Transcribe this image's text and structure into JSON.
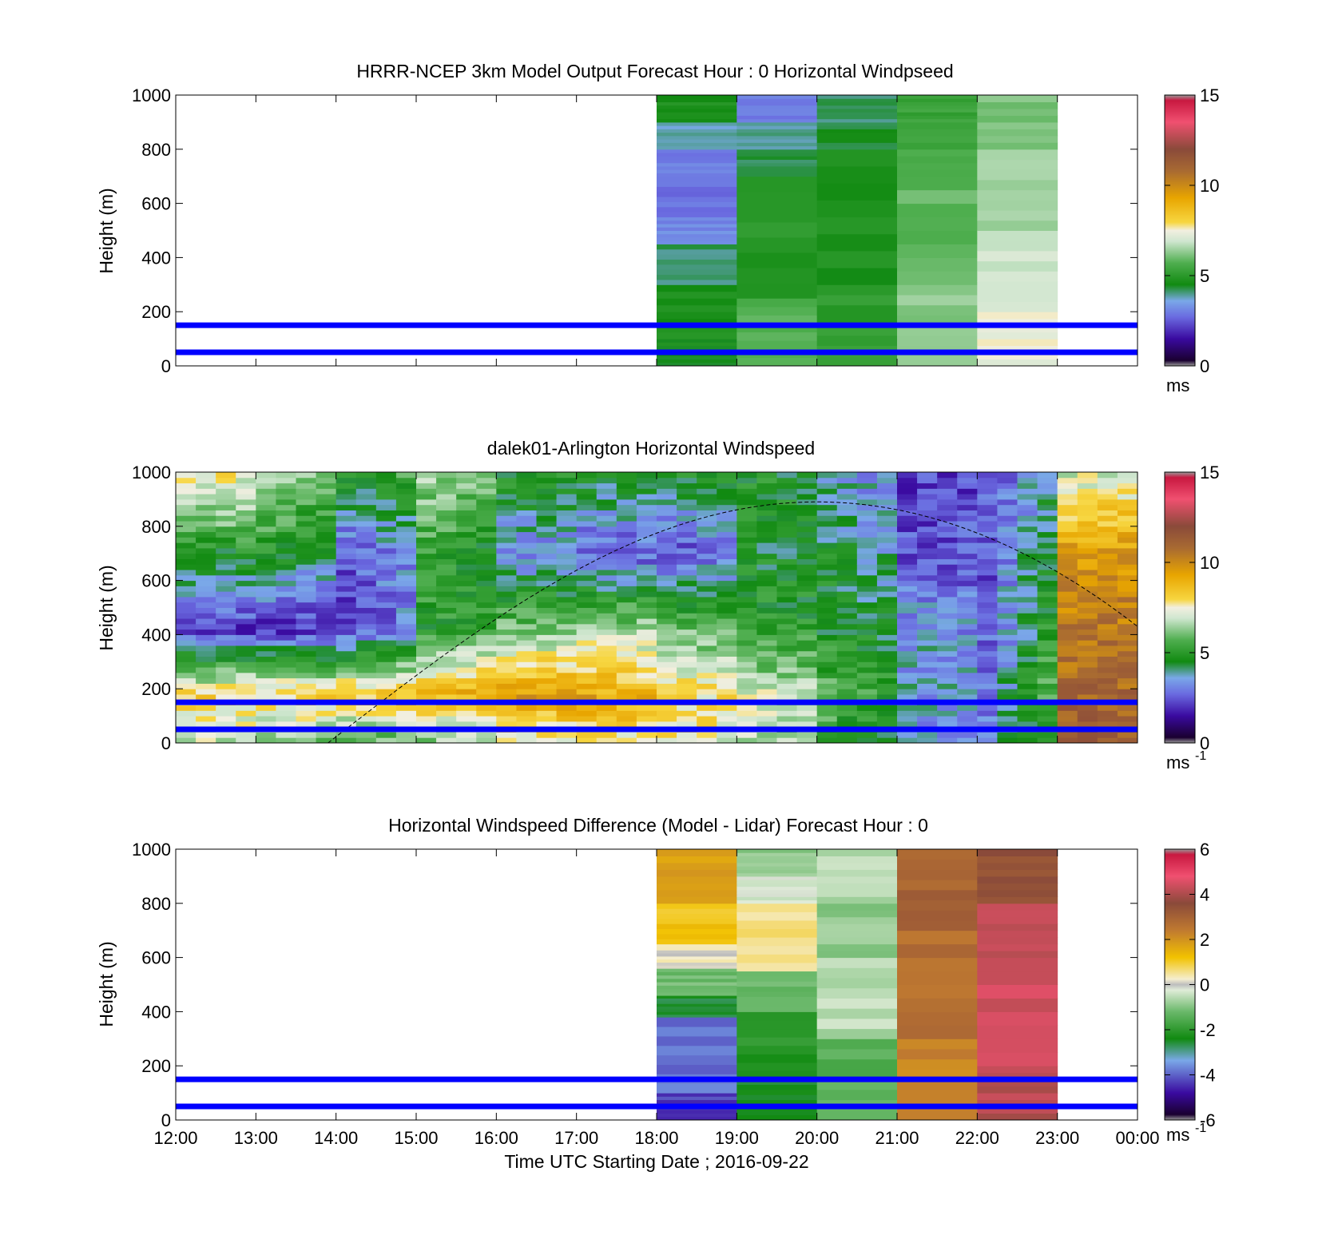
{
  "figure": {
    "xlabel": "Time UTC  Starting Date ; 2016-09-22",
    "x_tick_labels": [
      "12:00",
      "13:00",
      "14:00",
      "15:00",
      "16:00",
      "17:00",
      "18:00",
      "19:00",
      "20:00",
      "21:00",
      "22:00",
      "23:00",
      "00:00"
    ],
    "y_tick_labels": [
      "0",
      "200",
      "400",
      "600",
      "800",
      "1000"
    ],
    "reference_line_color": "#0000ff",
    "reference_lines_m": [
      50,
      150
    ]
  },
  "chart_data": [
    {
      "type": "heatmap",
      "title": "HRRR-NCEP 3km Model Output   Forecast Hour : 0 Horizontal Windpseed",
      "ylabel": "Height (m)",
      "xlim_hours": [
        12,
        24
      ],
      "ylim": [
        0,
        1000
      ],
      "colorbar": {
        "range": [
          0,
          15
        ],
        "ticks": [
          "0",
          "5",
          "10",
          "15"
        ],
        "unit": "ms"
      },
      "data_coverage_hours": [
        18,
        23
      ],
      "columns": [
        {
          "time": "18:00",
          "bins": [
            {
              "from": 0,
              "to": 100,
              "speed": 4.5
            },
            {
              "from": 100,
              "to": 300,
              "speed": 4.6
            },
            {
              "from": 300,
              "to": 450,
              "speed": 4.0
            },
            {
              "from": 450,
              "to": 550,
              "speed": 3.0
            },
            {
              "from": 550,
              "to": 700,
              "speed": 2.6
            },
            {
              "from": 700,
              "to": 800,
              "speed": 2.8
            },
            {
              "from": 800,
              "to": 900,
              "speed": 3.6
            },
            {
              "from": 900,
              "to": 1000,
              "speed": 4.6
            }
          ]
        },
        {
          "time": "19:00",
          "bins": [
            {
              "from": 0,
              "to": 250,
              "speed": 5.6
            },
            {
              "from": 250,
              "to": 700,
              "speed": 4.8
            },
            {
              "from": 700,
              "to": 800,
              "speed": 4.2
            },
            {
              "from": 800,
              "to": 900,
              "speed": 3.8
            },
            {
              "from": 900,
              "to": 1000,
              "speed": 2.8
            }
          ]
        },
        {
          "time": "20:00",
          "bins": [
            {
              "from": 0,
              "to": 300,
              "speed": 5.0
            },
            {
              "from": 300,
              "to": 800,
              "speed": 4.6
            },
            {
              "from": 800,
              "to": 900,
              "speed": 4.3
            },
            {
              "from": 900,
              "to": 1000,
              "speed": 4.0
            }
          ]
        },
        {
          "time": "21:00",
          "bins": [
            {
              "from": 0,
              "to": 300,
              "speed": 6.2
            },
            {
              "from": 300,
              "to": 700,
              "speed": 5.8
            },
            {
              "from": 700,
              "to": 900,
              "speed": 5.4
            },
            {
              "from": 900,
              "to": 1000,
              "speed": 5.2
            }
          ]
        },
        {
          "time": "22:00",
          "bins": [
            {
              "from": 0,
              "to": 200,
              "speed": 7.4
            },
            {
              "from": 200,
              "to": 500,
              "speed": 6.9
            },
            {
              "from": 500,
              "to": 800,
              "speed": 6.4
            },
            {
              "from": 800,
              "to": 1000,
              "speed": 6.1
            }
          ]
        }
      ]
    },
    {
      "type": "heatmap",
      "title": "dalek01-Arlington  Horizontal Windspeed",
      "ylabel": "Height (m)",
      "xlim_hours": [
        12,
        24
      ],
      "ylim": [
        0,
        1000
      ],
      "colorbar": {
        "range": [
          0,
          15
        ],
        "ticks": [
          "0",
          "5",
          "10",
          "15"
        ],
        "unit": "ms",
        "unit_exponent": "-1"
      },
      "data_coverage_hours": [
        12,
        23.9
      ],
      "columns_per_hour": 4,
      "boundary_layer_curve": {
        "start_time_hours": 13.9,
        "peak_time_hours": 20,
        "peak_height_m": 890,
        "end_time_hours": 24,
        "end_height_m": 430
      },
      "hourly_profiles": [
        {
          "time": "12:00",
          "low": 7.0,
          "jet": 8.0,
          "mid": 1.8,
          "upper": 4.6,
          "top": 8.0
        },
        {
          "time": "13:00",
          "low": 6.0,
          "jet": 8.2,
          "mid": 1.7,
          "upper": 4.8,
          "top": 6.6
        },
        {
          "time": "14:00",
          "low": 5.5,
          "jet": 8.5,
          "mid": 2.0,
          "upper": 2.2,
          "top": 4.8
        },
        {
          "time": "15:00",
          "low": 6.0,
          "jet": 8.8,
          "mid": 4.8,
          "upper": 5.2,
          "top": 6.4
        },
        {
          "time": "16:00",
          "low": 7.0,
          "jet": 9.6,
          "mid": 6.0,
          "upper": 3.0,
          "top": 4.8
        },
        {
          "time": "17:00",
          "low": 7.5,
          "jet": 9.4,
          "mid": 6.6,
          "upper": 2.4,
          "top": 4.6
        },
        {
          "time": "18:00",
          "low": 7.6,
          "jet": 8.0,
          "mid": 6.0,
          "upper": 2.0,
          "top": 4.6
        },
        {
          "time": "19:00",
          "low": 6.6,
          "jet": 7.2,
          "mid": 5.0,
          "upper": 4.4,
          "top": 4.8
        },
        {
          "time": "20:00",
          "low": 5.0,
          "jet": 5.6,
          "mid": 4.6,
          "upper": 4.4,
          "top": 3.4
        },
        {
          "time": "21:00",
          "low": 3.0,
          "jet": 3.4,
          "mid": 3.4,
          "upper": 2.2,
          "top": 2.0
        },
        {
          "time": "22:00",
          "low": 2.8,
          "jet": 3.0,
          "mid": 2.4,
          "upper": 2.2,
          "top": 2.2
        },
        {
          "time": "23:00",
          "low": 11.5,
          "jet": 11.0,
          "mid": 10.6,
          "upper": 9.6,
          "top": 7.0
        }
      ]
    },
    {
      "type": "heatmap",
      "title": "Horizontal Windspeed Difference (Model - Lidar) Forecast Hour : 0",
      "xlabel": "Time UTC  Starting Date ; 2016-09-22",
      "ylabel": "Height (m)",
      "xlim_hours": [
        12,
        24
      ],
      "ylim": [
        0,
        1000
      ],
      "colorbar": {
        "range": [
          -6,
          6
        ],
        "ticks": [
          "-6",
          "-4",
          "-2",
          "0",
          "2",
          "4",
          "6"
        ],
        "unit": "ms",
        "unit_exponent": "-1"
      },
      "data_coverage_hours": [
        18,
        23
      ],
      "columns": [
        {
          "time": "18:00",
          "bins": [
            {
              "from": 0,
              "to": 100,
              "speed": -4.5
            },
            {
              "from": 100,
              "to": 380,
              "speed": -4.0
            },
            {
              "from": 380,
              "to": 460,
              "speed": -2.6
            },
            {
              "from": 460,
              "to": 560,
              "speed": -1.2
            },
            {
              "from": 560,
              "to": 650,
              "speed": 0.2
            },
            {
              "from": 650,
              "to": 800,
              "speed": 1.2
            },
            {
              "from": 800,
              "to": 1000,
              "speed": 1.8
            }
          ]
        },
        {
          "time": "19:00",
          "bins": [
            {
              "from": 0,
              "to": 150,
              "speed": -2.6
            },
            {
              "from": 150,
              "to": 400,
              "speed": -2.2
            },
            {
              "from": 400,
              "to": 550,
              "speed": -1.2
            },
            {
              "from": 550,
              "to": 800,
              "speed": 0.6
            },
            {
              "from": 800,
              "to": 900,
              "speed": -0.3
            },
            {
              "from": 900,
              "to": 1000,
              "speed": -1.0
            }
          ]
        },
        {
          "time": "20:00",
          "bins": [
            {
              "from": 0,
              "to": 300,
              "speed": -1.5
            },
            {
              "from": 300,
              "to": 600,
              "speed": -0.6
            },
            {
              "from": 600,
              "to": 800,
              "speed": -0.9
            },
            {
              "from": 800,
              "to": 1000,
              "speed": -0.6
            }
          ]
        },
        {
          "time": "21:00",
          "bins": [
            {
              "from": 0,
              "to": 300,
              "speed": 2.3
            },
            {
              "from": 300,
              "to": 700,
              "speed": 2.8
            },
            {
              "from": 700,
              "to": 1000,
              "speed": 3.1
            }
          ]
        },
        {
          "time": "22:00",
          "bins": [
            {
              "from": 0,
              "to": 200,
              "speed": 4.3
            },
            {
              "from": 200,
              "to": 600,
              "speed": 4.6
            },
            {
              "from": 600,
              "to": 800,
              "speed": 4.4
            },
            {
              "from": 800,
              "to": 1000,
              "speed": 3.6
            }
          ]
        }
      ]
    }
  ]
}
